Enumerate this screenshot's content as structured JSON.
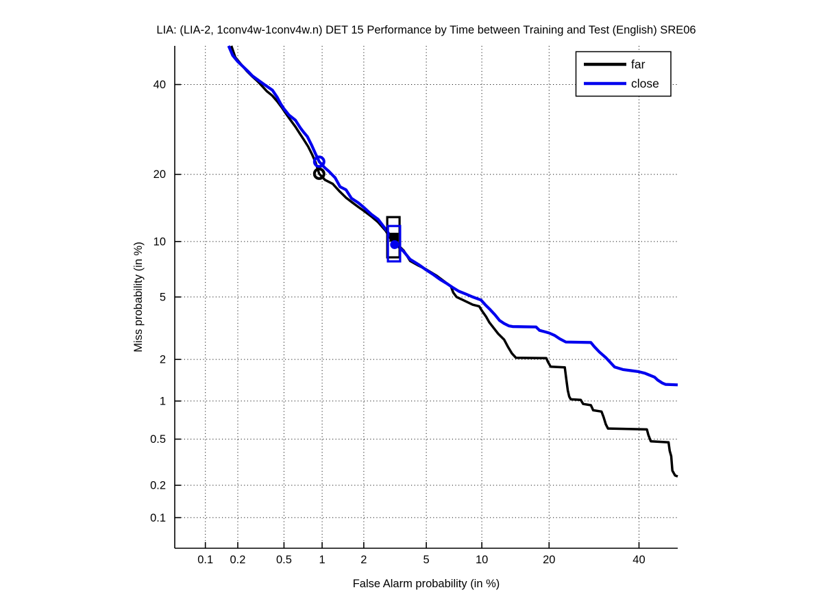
{
  "figure": {
    "title": "LIA: (LIA-2, 1conv4w-1conv4w.n) DET 15 Performance by Time between Training and Test (English) SRE06",
    "background": "#ffffff"
  },
  "legend": {
    "position": "top-right",
    "items": [
      {
        "label": "far",
        "color": "#000000"
      },
      {
        "label": "close",
        "color": "#0000ee"
      }
    ]
  },
  "chart_data": {
    "type": "line",
    "subtype": "DET curve, normal-deviate (probit) scale on both axes",
    "title": "LIA: (LIA-2, 1conv4w-1conv4w.n) DET 15 Performance by Time between Training and Test (English) SRE06",
    "xlabel": "False Alarm probability (in %)",
    "ylabel": "Miss probability (in %)",
    "xlim": [
      0.05,
      50
    ],
    "ylim": [
      0.05,
      50
    ],
    "grid": "dotted",
    "legend_position": "top-right",
    "xticks": [
      "0.1",
      "0.2",
      "0.5",
      "1",
      "2",
      "5",
      "10",
      "20",
      "40"
    ],
    "yticks": [
      "0.1",
      "0.2",
      "0.5",
      "1",
      "2",
      "5",
      "10",
      "20",
      "40"
    ],
    "xtick_values": [
      0.1,
      0.2,
      0.5,
      1,
      2,
      5,
      10,
      20,
      40
    ],
    "ytick_values": [
      0.1,
      0.2,
      0.5,
      1,
      2,
      5,
      10,
      20,
      40
    ],
    "series": [
      {
        "name": "far",
        "color": "#000000",
        "width": 3.5,
        "points": [
          [
            0.175,
            50
          ],
          [
            0.19,
            47
          ],
          [
            0.21,
            45.5
          ],
          [
            0.24,
            43.5
          ],
          [
            0.27,
            42
          ],
          [
            0.3,
            40.8
          ],
          [
            0.33,
            39.5
          ],
          [
            0.36,
            38.3
          ],
          [
            0.4,
            37.2
          ],
          [
            0.44,
            35.8
          ],
          [
            0.48,
            34.3
          ],
          [
            0.52,
            32.8
          ],
          [
            0.57,
            31.2
          ],
          [
            0.62,
            29.8
          ],
          [
            0.67,
            28.3
          ],
          [
            0.72,
            27.0
          ],
          [
            0.78,
            25.5
          ],
          [
            0.84,
            23.8
          ],
          [
            0.89,
            22.3
          ],
          [
            0.95,
            20.1
          ],
          [
            1.05,
            19.0
          ],
          [
            1.2,
            18.3
          ],
          [
            1.35,
            17.0
          ],
          [
            1.5,
            16.0
          ],
          [
            1.65,
            15.3
          ],
          [
            1.85,
            14.5
          ],
          [
            2.0,
            14.0
          ],
          [
            2.25,
            13.2
          ],
          [
            2.5,
            12.4
          ],
          [
            2.8,
            11.3
          ],
          [
            3.0,
            10.4
          ],
          [
            3.3,
            9.75
          ],
          [
            3.65,
            9.0
          ],
          [
            4.0,
            7.95
          ],
          [
            4.5,
            7.5
          ],
          [
            5.0,
            7.15
          ],
          [
            5.75,
            6.6
          ],
          [
            6.4,
            6.1
          ],
          [
            6.9,
            5.75
          ],
          [
            7.1,
            5.3
          ],
          [
            7.4,
            5.0
          ],
          [
            8.0,
            4.8
          ],
          [
            9.0,
            4.5
          ],
          [
            9.7,
            4.4
          ],
          [
            10.0,
            4.15
          ],
          [
            10.5,
            3.8
          ],
          [
            10.9,
            3.5
          ],
          [
            11.5,
            3.2
          ],
          [
            12.0,
            2.97
          ],
          [
            12.8,
            2.72
          ],
          [
            13.3,
            2.45
          ],
          [
            13.9,
            2.2
          ],
          [
            14.5,
            2.05
          ],
          [
            19.5,
            2.04
          ],
          [
            19.8,
            1.92
          ],
          [
            20.3,
            1.78
          ],
          [
            23.0,
            1.76
          ],
          [
            23.3,
            1.45
          ],
          [
            23.6,
            1.2
          ],
          [
            23.9,
            1.08
          ],
          [
            24.2,
            1.03
          ],
          [
            26.3,
            1.02
          ],
          [
            26.8,
            0.95
          ],
          [
            28.5,
            0.93
          ],
          [
            29.0,
            0.85
          ],
          [
            30.9,
            0.83
          ],
          [
            31.4,
            0.75
          ],
          [
            31.9,
            0.66
          ],
          [
            32.4,
            0.61
          ],
          [
            42.0,
            0.6
          ],
          [
            42.4,
            0.54
          ],
          [
            43.0,
            0.48
          ],
          [
            47.6,
            0.47
          ],
          [
            47.9,
            0.4
          ],
          [
            48.3,
            0.36
          ],
          [
            48.6,
            0.27
          ],
          [
            49.3,
            0.245
          ],
          [
            50.0,
            0.24
          ]
        ]
      },
      {
        "name": "close",
        "color": "#0000ee",
        "width": 4.2,
        "points": [
          [
            0.165,
            50
          ],
          [
            0.18,
            47.5
          ],
          [
            0.2,
            45.9
          ],
          [
            0.225,
            44.5
          ],
          [
            0.25,
            43.2
          ],
          [
            0.27,
            42.2
          ],
          [
            0.3,
            41.2
          ],
          [
            0.35,
            39.8
          ],
          [
            0.4,
            38.6
          ],
          [
            0.44,
            36.8
          ],
          [
            0.47,
            35.2
          ],
          [
            0.5,
            34.0
          ],
          [
            0.55,
            32.5
          ],
          [
            0.62,
            31.3
          ],
          [
            0.68,
            29.5
          ],
          [
            0.72,
            28.6
          ],
          [
            0.77,
            27.6
          ],
          [
            0.83,
            25.8
          ],
          [
            0.89,
            24.0
          ],
          [
            0.95,
            22.4
          ],
          [
            1.05,
            21.2
          ],
          [
            1.12,
            20.6
          ],
          [
            1.25,
            19.4
          ],
          [
            1.36,
            17.8
          ],
          [
            1.5,
            17.3
          ],
          [
            1.64,
            15.9
          ],
          [
            1.83,
            15.2
          ],
          [
            2.0,
            14.5
          ],
          [
            2.25,
            13.5
          ],
          [
            2.5,
            12.8
          ],
          [
            2.8,
            11.5
          ],
          [
            3.0,
            10.7
          ],
          [
            3.3,
            9.6
          ],
          [
            3.65,
            8.9
          ],
          [
            4.0,
            8.1
          ],
          [
            4.5,
            7.6
          ],
          [
            5.0,
            7.1
          ],
          [
            5.5,
            6.7
          ],
          [
            6.0,
            6.3
          ],
          [
            6.5,
            6.0
          ],
          [
            7.0,
            5.7
          ],
          [
            7.6,
            5.4
          ],
          [
            8.3,
            5.2
          ],
          [
            9.0,
            5.0
          ],
          [
            9.9,
            4.8
          ],
          [
            10.4,
            4.5
          ],
          [
            10.9,
            4.25
          ],
          [
            11.6,
            3.9
          ],
          [
            12.2,
            3.6
          ],
          [
            12.8,
            3.45
          ],
          [
            13.5,
            3.33
          ],
          [
            14.0,
            3.3
          ],
          [
            17.7,
            3.28
          ],
          [
            18.3,
            3.12
          ],
          [
            19.3,
            3.05
          ],
          [
            20.0,
            3.0
          ],
          [
            21.0,
            2.9
          ],
          [
            22.0,
            2.75
          ],
          [
            23.2,
            2.62
          ],
          [
            28.5,
            2.6
          ],
          [
            29.2,
            2.45
          ],
          [
            30.4,
            2.25
          ],
          [
            31.9,
            2.06
          ],
          [
            33.0,
            1.9
          ],
          [
            34.0,
            1.77
          ],
          [
            36.0,
            1.7
          ],
          [
            38.0,
            1.67
          ],
          [
            40.0,
            1.64
          ],
          [
            41.5,
            1.6
          ],
          [
            42.0,
            1.58
          ],
          [
            44.0,
            1.5
          ],
          [
            44.8,
            1.43
          ],
          [
            46.0,
            1.36
          ],
          [
            46.8,
            1.33
          ],
          [
            50.0,
            1.32
          ]
        ]
      }
    ],
    "markers": [
      {
        "shape": "circle",
        "series": "far",
        "x": 0.95,
        "y": 20.1
      },
      {
        "shape": "open_rect",
        "series": "far",
        "x1": 2.87,
        "x2": 3.44,
        "y1": 13.1,
        "y2": 8.3
      },
      {
        "shape": "filled_square",
        "series": "far",
        "x": 3.17,
        "y": 10.5
      },
      {
        "shape": "circle",
        "series": "close",
        "x": 0.95,
        "y": 22.4
      },
      {
        "shape": "open_rect",
        "series": "close",
        "x1": 2.9,
        "x2": 3.47,
        "y1": 11.9,
        "y2": 7.9
      },
      {
        "shape": "filled_dot",
        "series": "close",
        "x": 3.2,
        "y": 9.65
      }
    ]
  }
}
